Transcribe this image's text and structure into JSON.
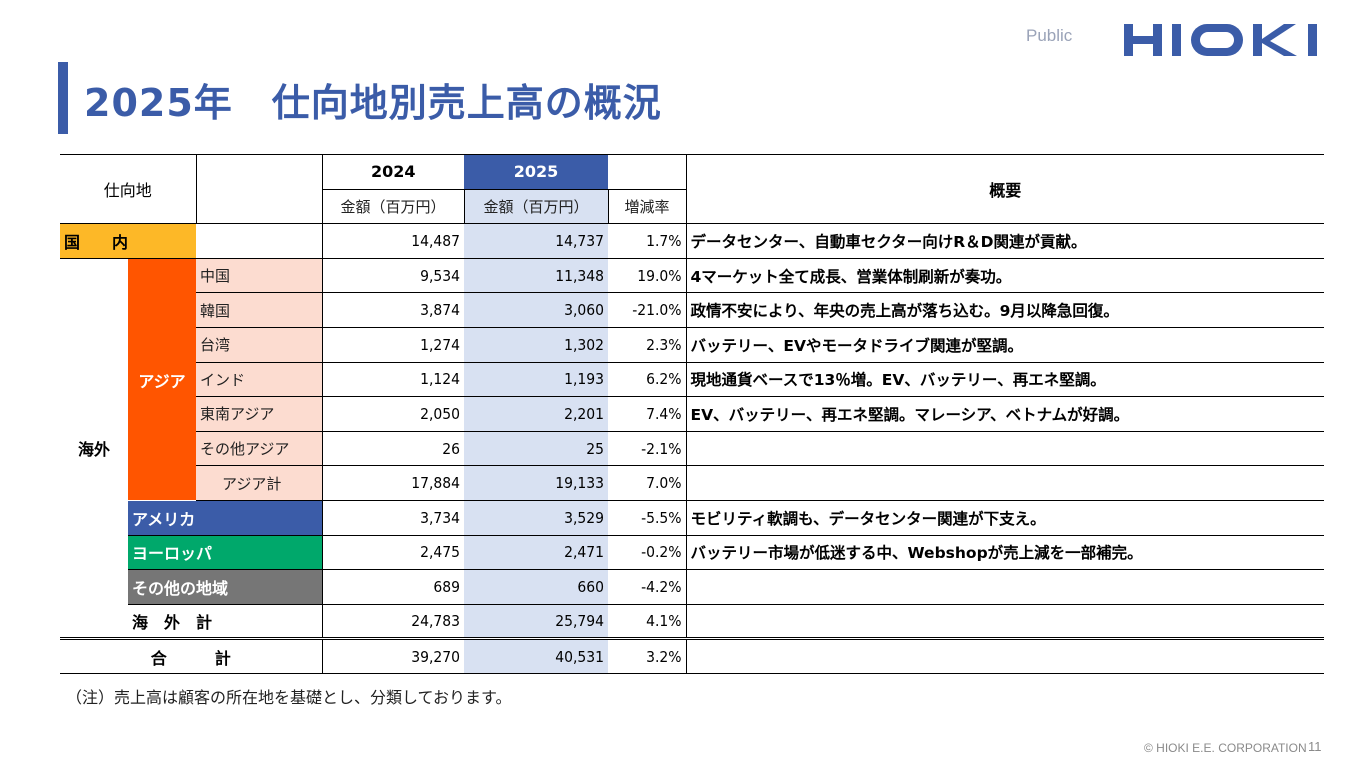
{
  "header": {
    "classification": "Public",
    "logo_text": "HIOKI",
    "title": "2025年　仕向地別売上高の概況"
  },
  "table": {
    "headers": {
      "destination": "仕向地",
      "year_2024": "2024",
      "year_2025": "2025",
      "amount_2024": "金額（百万円）",
      "amount_2025": "金額（百万円）",
      "change_rate": "増減率",
      "summary": "概要"
    },
    "domestic": {
      "label": "国　　内",
      "v2024": "14,487",
      "v2025": "14,737",
      "rate": "1.7%",
      "desc": "データセンター、自動車セクター向けR＆D関連が貢献。"
    },
    "overseas_label": "海外",
    "asia_label": "アジア",
    "asia_rows": [
      {
        "label": "中国",
        "v2024": "9,534",
        "v2025": "11,348",
        "rate": "19.0%",
        "desc": "4マーケット全て成長、営業体制刷新が奏功。"
      },
      {
        "label": "韓国",
        "v2024": "3,874",
        "v2025": "3,060",
        "rate": "-21.0%",
        "desc": "政情不安により、年央の売上高が落ち込む。9月以降急回復。"
      },
      {
        "label": "台湾",
        "v2024": "1,274",
        "v2025": "1,302",
        "rate": "2.3%",
        "desc": "バッテリー、EVやモータドライブ関連が堅調。"
      },
      {
        "label": "インド",
        "v2024": "1,124",
        "v2025": "1,193",
        "rate": "6.2%",
        "desc": "現地通貨ベースで13％増。EV、バッテリー、再エネ堅調。"
      },
      {
        "label": "東南アジア",
        "v2024": "2,050",
        "v2025": "2,201",
        "rate": "7.4%",
        "desc": "EV、バッテリー、再エネ堅調。マレーシア、ベトナムが好調。"
      },
      {
        "label": "その他アジア",
        "v2024": "26",
        "v2025": "25",
        "rate": "-2.1%",
        "desc": ""
      }
    ],
    "asia_total": {
      "label": "アジア計",
      "v2024": "17,884",
      "v2025": "19,133",
      "rate": "7.0%",
      "desc": ""
    },
    "america": {
      "label": "アメリカ",
      "v2024": "3,734",
      "v2025": "3,529",
      "rate": "-5.5%",
      "desc": "モビリティ軟調も、データセンター関連が下支え。"
    },
    "europe": {
      "label": "ヨーロッパ",
      "v2024": "2,475",
      "v2025": "2,471",
      "rate": "-0.2%",
      "desc": "バッテリー市場が低迷する中、Webshopが売上減を一部補完。"
    },
    "other": {
      "label": "その他の地域",
      "v2024": "689",
      "v2025": "660",
      "rate": "-4.2%",
      "desc": ""
    },
    "overseas_total": {
      "label": "海　外　計",
      "v2024": "24,783",
      "v2025": "25,794",
      "rate": "4.1%",
      "desc": ""
    },
    "grand_total": {
      "label": "合　　　計",
      "v2024": "39,270",
      "v2025": "40,531",
      "rate": "3.2%",
      "desc": ""
    }
  },
  "note": "（注）売上高は顧客の所在地を基礎とし、分類しております。",
  "footer": {
    "copyright": "© HIOKI E.E. CORPORATION",
    "page": "11"
  },
  "colors": {
    "brand": "#3b5ca8",
    "domestic": "#fdb827",
    "asia": "#ff5500",
    "asia_rows": "#fcdcd0",
    "america": "#3b5ca8",
    "europe": "#00a86b",
    "other": "#767676",
    "col2025": "#d8e1f2"
  }
}
